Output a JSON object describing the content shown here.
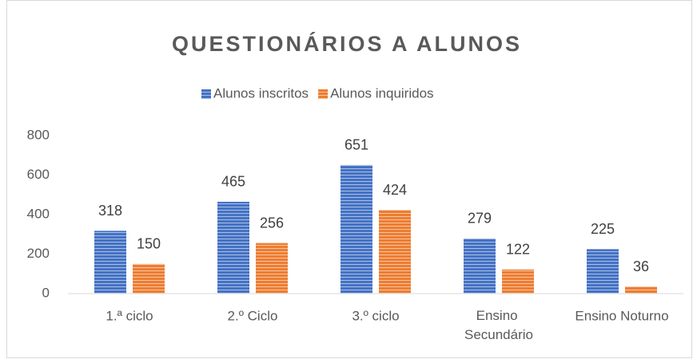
{
  "chart_data": {
    "type": "bar",
    "title": "QUESTIONÁRIOS A ALUNOS",
    "categories": [
      "1.ª ciclo",
      "2.º Ciclo",
      "3.º ciclo",
      "Ensino Secundário",
      "Ensino Noturno"
    ],
    "series": [
      {
        "name": "Alunos inscritos",
        "color": "#4472c4",
        "values": [
          318,
          465,
          651,
          279,
          225
        ]
      },
      {
        "name": "Alunos inquiridos",
        "color": "#ed7d31",
        "values": [
          150,
          256,
          424,
          122,
          36
        ]
      }
    ],
    "ylim": [
      0,
      800
    ],
    "yticks": [
      0,
      200,
      400,
      600,
      800
    ],
    "legend": "top",
    "grid": false
  }
}
